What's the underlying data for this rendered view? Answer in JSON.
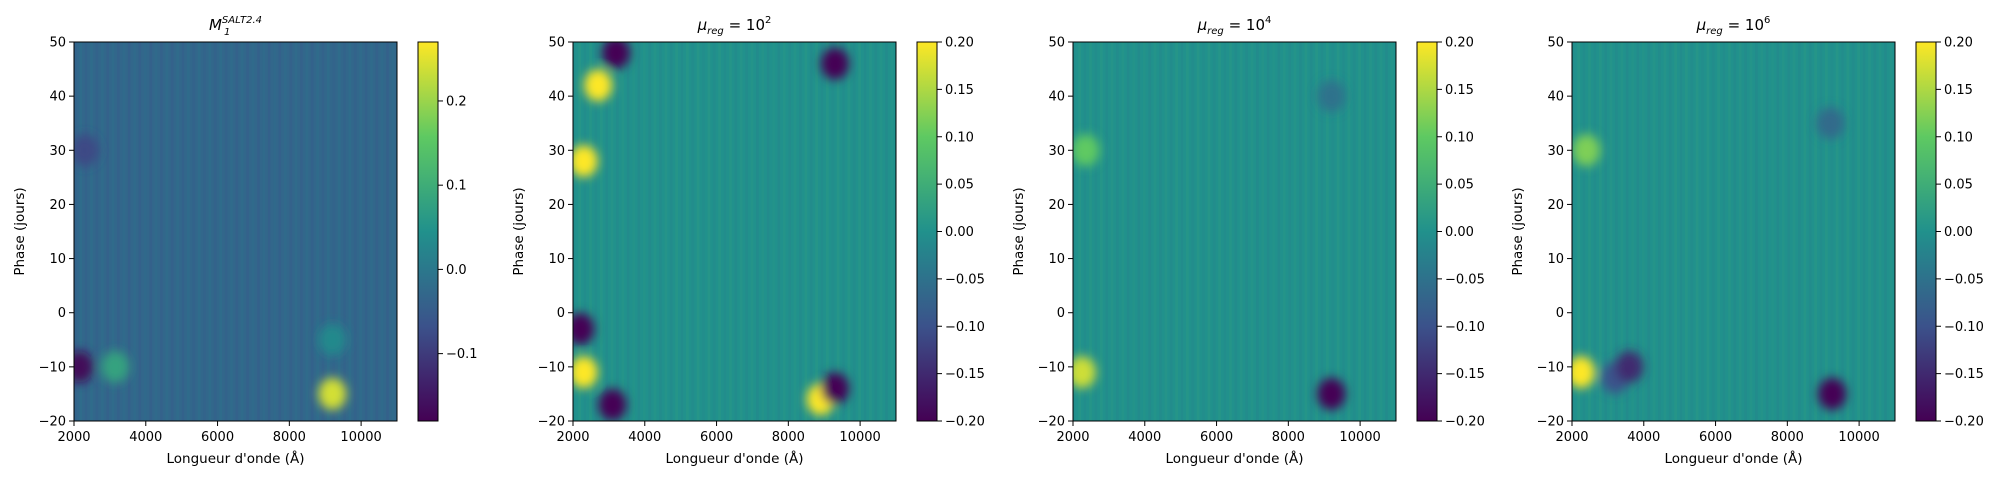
{
  "figure": {
    "colormap": [
      "#440154",
      "#3b528b",
      "#21918c",
      "#5ec962",
      "#fde725"
    ],
    "frame_color": "#000000"
  },
  "chart_data": [
    {
      "type": "heatmap",
      "title_main": "M",
      "title_sub": "1",
      "title_sup": "SALT2.4",
      "xlabel": "Longueur d'onde (Å)",
      "ylabel": "Phase (jours)",
      "xlim": [
        2000,
        11000
      ],
      "ylim": [
        -20,
        50
      ],
      "xticks": [
        "2000",
        "4000",
        "6000",
        "8000",
        "10000"
      ],
      "xtick_values": [
        2000,
        4000,
        6000,
        8000,
        10000
      ],
      "yticks": [
        "-20",
        "-10",
        "0",
        "10",
        "20",
        "30",
        "40",
        "50"
      ],
      "ytick_values": [
        -20,
        -10,
        0,
        10,
        20,
        30,
        40,
        50
      ],
      "colorbar_range": [
        -0.18,
        0.27
      ],
      "colorbar_ticks": [
        "-0.1",
        "0.0",
        "0.1",
        "0.2"
      ],
      "colorbar_tick_values": [
        -0.1,
        0.0,
        0.1,
        0.2
      ],
      "background_value": -0.03,
      "features": [
        {
          "x": 2150,
          "y": -10,
          "value": -0.17
        },
        {
          "x": 2300,
          "y": 30,
          "value": -0.08
        },
        {
          "x": 3150,
          "y": -10,
          "value": 0.08
        },
        {
          "x": 9200,
          "y": -15,
          "value": 0.24
        },
        {
          "x": 9200,
          "y": -5,
          "value": 0.03
        }
      ]
    },
    {
      "type": "heatmap",
      "title_main": "μ",
      "title_sub": "reg",
      "title_mid": " = 10",
      "title_sup": "2",
      "xlabel": "Longueur d'onde (Å)",
      "ylabel": "Phase (jours)",
      "xlim": [
        2000,
        11000
      ],
      "ylim": [
        -20,
        50
      ],
      "xticks": [
        "2000",
        "4000",
        "6000",
        "8000",
        "10000"
      ],
      "xtick_values": [
        2000,
        4000,
        6000,
        8000,
        10000
      ],
      "yticks": [
        "-20",
        "-10",
        "0",
        "10",
        "20",
        "30",
        "40",
        "50"
      ],
      "ytick_values": [
        -20,
        -10,
        0,
        10,
        20,
        30,
        40,
        50
      ],
      "colorbar_range": [
        -0.2,
        0.2
      ],
      "colorbar_ticks": [
        "-0.20",
        "-0.15",
        "-0.10",
        "-0.05",
        "0.00",
        "0.05",
        "0.10",
        "0.15",
        "0.20"
      ],
      "colorbar_tick_values": [
        -0.2,
        -0.15,
        -0.1,
        -0.05,
        0.0,
        0.05,
        0.1,
        0.15,
        0.2
      ],
      "background_value": 0.0,
      "features": [
        {
          "x": 2300,
          "y": -11,
          "value": 0.2
        },
        {
          "x": 2300,
          "y": 28,
          "value": 0.2
        },
        {
          "x": 2700,
          "y": 42,
          "value": 0.2
        },
        {
          "x": 2200,
          "y": -3,
          "value": -0.2
        },
        {
          "x": 3100,
          "y": -17,
          "value": -0.2
        },
        {
          "x": 3200,
          "y": 48,
          "value": -0.2
        },
        {
          "x": 8900,
          "y": -16,
          "value": 0.2
        },
        {
          "x": 9300,
          "y": -14,
          "value": -0.2
        },
        {
          "x": 9300,
          "y": 46,
          "value": -0.2
        }
      ]
    },
    {
      "type": "heatmap",
      "title_main": "μ",
      "title_sub": "reg",
      "title_mid": " = 10",
      "title_sup": "4",
      "xlabel": "Longueur d'onde (Å)",
      "ylabel": "Phase (jours)",
      "xlim": [
        2000,
        11000
      ],
      "ylim": [
        -20,
        50
      ],
      "xticks": [
        "2000",
        "4000",
        "6000",
        "8000",
        "10000"
      ],
      "xtick_values": [
        2000,
        4000,
        6000,
        8000,
        10000
      ],
      "yticks": [
        "-20",
        "-10",
        "0",
        "10",
        "20",
        "30",
        "40",
        "50"
      ],
      "ytick_values": [
        -20,
        -10,
        0,
        10,
        20,
        30,
        40,
        50
      ],
      "colorbar_range": [
        -0.2,
        0.2
      ],
      "colorbar_ticks": [
        "-0.20",
        "-0.15",
        "-0.10",
        "-0.05",
        "0.00",
        "0.05",
        "0.10",
        "0.15",
        "0.20"
      ],
      "colorbar_tick_values": [
        -0.2,
        -0.15,
        -0.1,
        -0.05,
        0.0,
        0.05,
        0.1,
        0.15,
        0.2
      ],
      "background_value": 0.0,
      "features": [
        {
          "x": 2250,
          "y": -11,
          "value": 0.17
        },
        {
          "x": 2350,
          "y": 30,
          "value": 0.1
        },
        {
          "x": 9200,
          "y": -15,
          "value": -0.2
        },
        {
          "x": 9200,
          "y": 40,
          "value": -0.05
        }
      ]
    },
    {
      "type": "heatmap",
      "title_main": "μ",
      "title_sub": "reg",
      "title_mid": " = 10",
      "title_sup": "6",
      "xlabel": "Longueur d'onde (Å)",
      "ylabel": "Phase (jours)",
      "xlim": [
        2000,
        11000
      ],
      "ylim": [
        -20,
        50
      ],
      "xticks": [
        "2000",
        "4000",
        "6000",
        "8000",
        "10000"
      ],
      "xtick_values": [
        2000,
        4000,
        6000,
        8000,
        10000
      ],
      "yticks": [
        "-20",
        "-10",
        "0",
        "10",
        "20",
        "30",
        "40",
        "50"
      ],
      "ytick_values": [
        -20,
        -10,
        0,
        10,
        20,
        30,
        40,
        50
      ],
      "colorbar_range": [
        -0.2,
        0.2
      ],
      "colorbar_ticks": [
        "-0.20",
        "-0.15",
        "-0.10",
        "-0.05",
        "0.00",
        "0.05",
        "0.10",
        "0.15",
        "0.20"
      ],
      "colorbar_tick_values": [
        -0.2,
        -0.15,
        -0.1,
        -0.05,
        0.0,
        0.05,
        0.1,
        0.15,
        0.2
      ],
      "background_value": 0.0,
      "features": [
        {
          "x": 2250,
          "y": -11,
          "value": 0.2
        },
        {
          "x": 2400,
          "y": 30,
          "value": 0.12
        },
        {
          "x": 3200,
          "y": -12,
          "value": -0.1
        },
        {
          "x": 3600,
          "y": -10,
          "value": -0.15
        },
        {
          "x": 9250,
          "y": -15,
          "value": -0.2
        },
        {
          "x": 9200,
          "y": 35,
          "value": -0.06
        }
      ]
    }
  ]
}
